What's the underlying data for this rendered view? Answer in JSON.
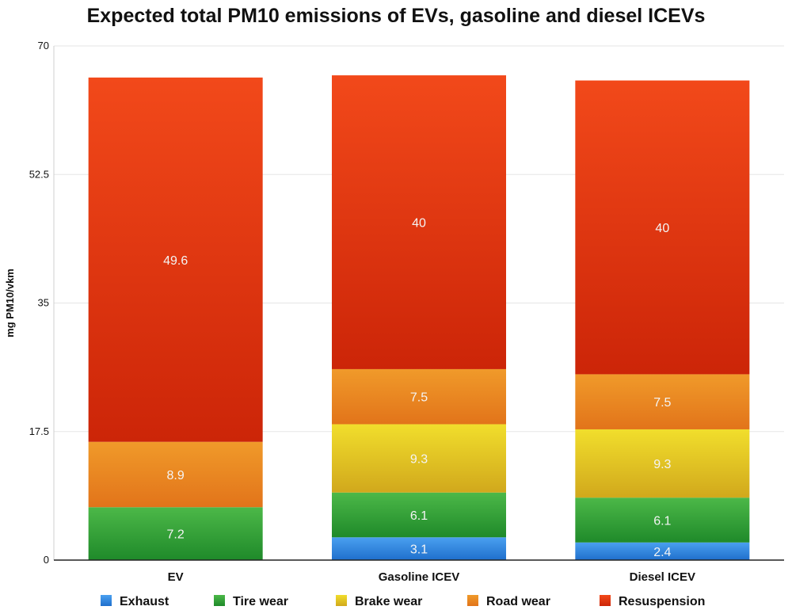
{
  "chart_data": {
    "type": "bar",
    "stacked": true,
    "title": "Expected total PM10 emissions of EVs, gasoline and diesel ICEVs",
    "xlabel": "",
    "ylabel": "mg PM10/vkm",
    "ylim": [
      0,
      70
    ],
    "yticks": [
      "0",
      "17.5",
      "35",
      "52.5",
      "70"
    ],
    "grid": true,
    "legend_position": "bottom",
    "categories": [
      "EV",
      "Gasoline ICEV",
      "Diesel ICEV"
    ],
    "series": [
      {
        "name": "Exhaust",
        "color": "#2a7fd9",
        "values": [
          0,
          3.1,
          2.4
        ]
      },
      {
        "name": "Tire wear",
        "color": "#2e9e35",
        "values": [
          7.2,
          6.1,
          6.1
        ]
      },
      {
        "name": "Brake wear",
        "color": "#e0c21c",
        "values": [
          0,
          9.3,
          9.3
        ]
      },
      {
        "name": "Road wear",
        "color": "#ee8420",
        "values": [
          8.9,
          7.5,
          7.5
        ]
      },
      {
        "name": "Resuspension",
        "color": "#e5350f",
        "values": [
          49.6,
          40,
          40
        ]
      }
    ],
    "data_labels": [
      [
        "",
        "7.2",
        "",
        "8.9",
        "49.6"
      ],
      [
        "3.1",
        "6.1",
        "9.3",
        "7.5",
        "40"
      ],
      [
        "2.4",
        "6.1",
        "9.3",
        "7.5",
        "40"
      ]
    ]
  }
}
